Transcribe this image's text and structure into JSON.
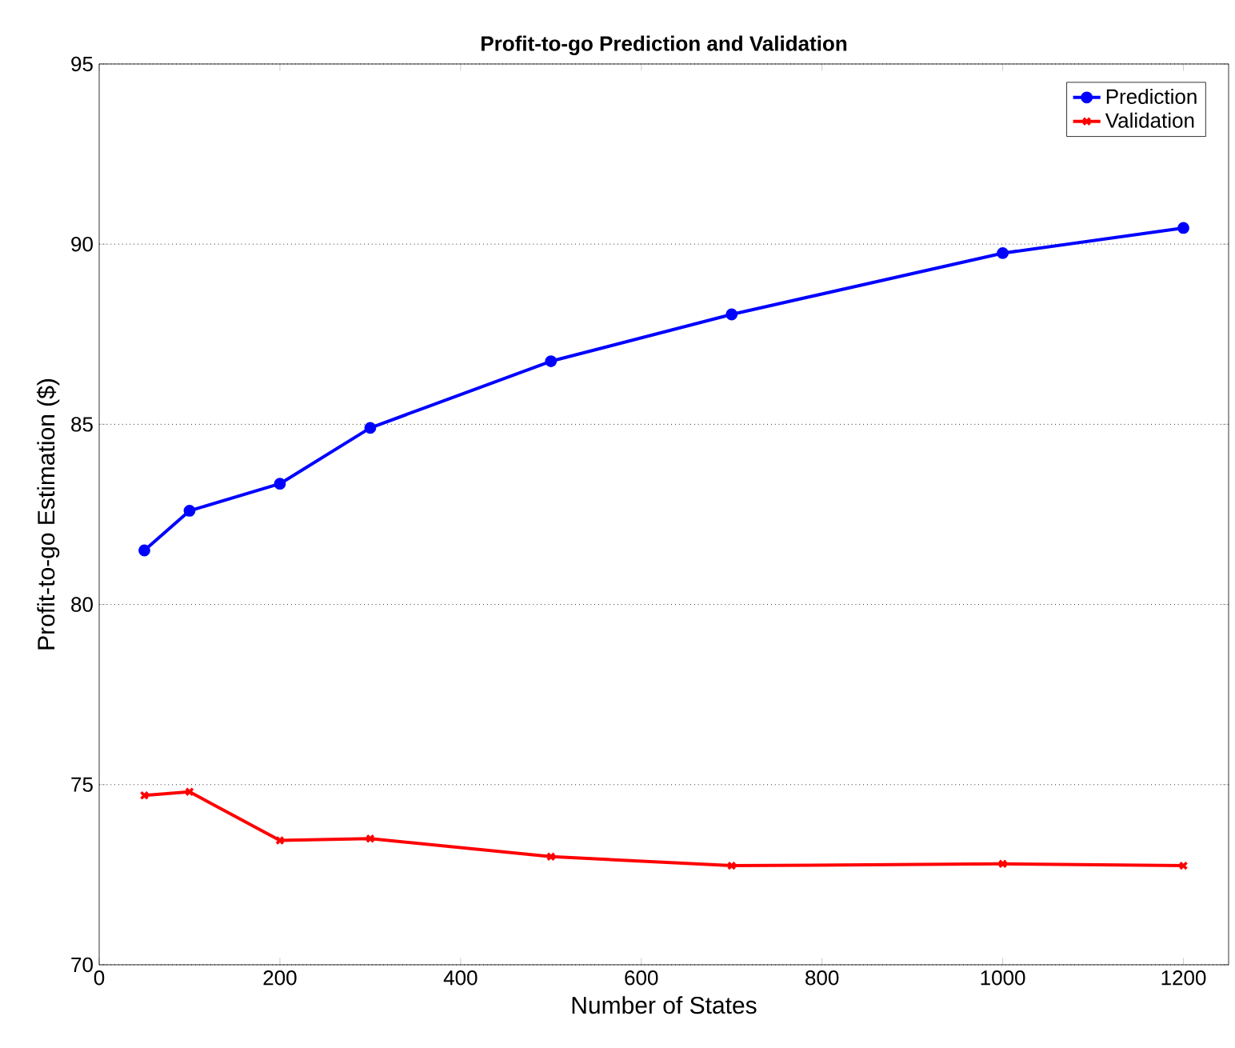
{
  "chart_data": {
    "type": "line",
    "title": "Profit-to-go Prediction and Validation",
    "xlabel": "Number of States",
    "ylabel": "Profit-to-go Estimation ($)",
    "x": [
      50,
      100,
      200,
      300,
      500,
      700,
      1000,
      1200
    ],
    "series": [
      {
        "name": "Prediction",
        "color": "#0000ff",
        "marker": "circle",
        "values": [
          81.5,
          82.6,
          83.35,
          84.9,
          86.75,
          88.05,
          89.75,
          90.45
        ]
      },
      {
        "name": "Validation",
        "color": "#ff0000",
        "marker": "cross",
        "values": [
          74.7,
          74.8,
          73.45,
          73.5,
          73.0,
          72.75,
          72.8,
          72.75
        ]
      }
    ],
    "xlim": [
      0,
      1250
    ],
    "ylim": [
      70,
      95
    ],
    "xticks": [
      0,
      200,
      400,
      600,
      800,
      1000,
      1200
    ],
    "yticks": [
      70,
      75,
      80,
      85,
      90,
      95
    ],
    "grid": "y",
    "legend": "top right",
    "line_style": "solid"
  }
}
